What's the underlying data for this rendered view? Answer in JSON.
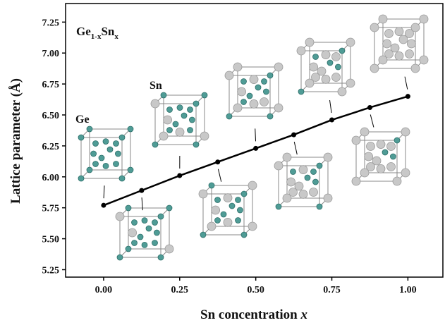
{
  "chart_data": {
    "type": "line",
    "title_parts": [
      "Ge",
      "1-x",
      "Sn",
      "x"
    ],
    "annotations": [
      "Ge",
      "Sn"
    ],
    "x_label_parts": [
      "Sn concentration",
      "x"
    ],
    "y_label": "Lattice parameter (Å)",
    "x": [
      0,
      0.125,
      0.25,
      0.375,
      0.5,
      0.625,
      0.75,
      0.875,
      1.0
    ],
    "series": [
      {
        "color": "#000000",
        "values": [
          5.77,
          5.89,
          6.01,
          6.12,
          6.23,
          6.34,
          6.46,
          6.56,
          6.65
        ]
      }
    ],
    "xlim": [
      -0.125,
      1.115
    ],
    "ylim": [
      5.19,
      7.4
    ],
    "xticks": [
      {
        "value": 0,
        "label": "0.00"
      },
      {
        "value": 0.25,
        "label": "0.25"
      },
      {
        "value": 0.5,
        "label": "0.50"
      },
      {
        "value": 0.75,
        "label": "0.75"
      },
      {
        "value": 1,
        "label": "1.00"
      }
    ],
    "yticks": [
      {
        "value": 5.25,
        "label": "5.25"
      },
      {
        "value": 5.5,
        "label": "5.50"
      },
      {
        "value": 5.75,
        "label": "5.75"
      },
      {
        "value": 6,
        "label": "6.00"
      },
      {
        "value": 6.25,
        "label": "6.25"
      },
      {
        "value": 6.5,
        "label": "6.50"
      },
      {
        "value": 6.75,
        "label": "6.75"
      },
      {
        "value": 7,
        "label": "7.00"
      },
      {
        "value": 7.25,
        "label": "7.25"
      }
    ]
  }
}
